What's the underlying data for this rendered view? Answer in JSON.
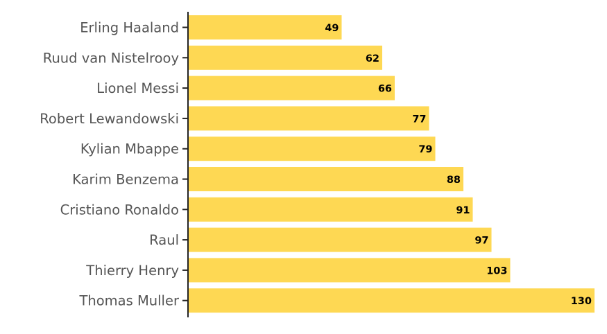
{
  "chart_data": {
    "type": "bar",
    "orientation": "horizontal",
    "title": "",
    "xlabel": "",
    "ylabel": "",
    "categories": [
      "Erling Haaland",
      "Ruud van Nistelrooy",
      "Lionel Messi",
      "Robert Lewandowski",
      "Kylian Mbappe",
      "Karim Benzema",
      "Cristiano Ronaldo",
      "Raul",
      "Thierry Henry",
      "Thomas Muller"
    ],
    "values": [
      49,
      62,
      66,
      77,
      79,
      88,
      91,
      97,
      103,
      130
    ],
    "xlim": [
      0,
      130
    ],
    "grid": false,
    "bar_color": "#FED853",
    "label_color": "#555555",
    "value_label_color": "#000000"
  }
}
